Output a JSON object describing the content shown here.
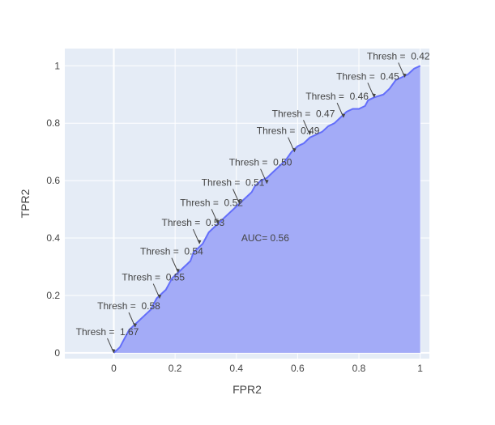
{
  "chart_data": {
    "type": "area",
    "xlabel": "FPR2",
    "ylabel": "TPR2",
    "xlim": [
      -0.16,
      1.03
    ],
    "ylim": [
      -0.02,
      1.06
    ],
    "x_ticks": [
      {
        "value": 0,
        "label": "0"
      },
      {
        "value": 0.2,
        "label": "0.2"
      },
      {
        "value": 0.4,
        "label": "0.4"
      },
      {
        "value": 0.6,
        "label": "0.6"
      },
      {
        "value": 0.8,
        "label": "0.8"
      },
      {
        "value": 1,
        "label": "1"
      }
    ],
    "y_ticks": [
      {
        "value": 0,
        "label": "0"
      },
      {
        "value": 0.2,
        "label": "0.2"
      },
      {
        "value": 0.4,
        "label": "0.4"
      },
      {
        "value": 0.6,
        "label": "0.6"
      },
      {
        "value": 0.8,
        "label": "0.8"
      },
      {
        "value": 1,
        "label": "1"
      }
    ],
    "grid": true,
    "colors": {
      "line": "#636efa",
      "fill": "#a3abf7",
      "plot_bg": "#e5ecf6",
      "grid": "#ffffff"
    },
    "roc_curve": {
      "x": [
        0.0,
        0.02,
        0.03,
        0.04,
        0.05,
        0.06,
        0.07,
        0.08,
        0.09,
        0.1,
        0.12,
        0.13,
        0.14,
        0.15,
        0.16,
        0.17,
        0.18,
        0.19,
        0.2,
        0.21,
        0.22,
        0.23,
        0.24,
        0.25,
        0.26,
        0.27,
        0.28,
        0.29,
        0.3,
        0.31,
        0.32,
        0.33,
        0.34,
        0.35,
        0.36,
        0.38,
        0.4,
        0.42,
        0.44,
        0.45,
        0.46,
        0.48,
        0.5,
        0.52,
        0.54,
        0.55,
        0.56,
        0.58,
        0.59,
        0.6,
        0.62,
        0.64,
        0.66,
        0.68,
        0.7,
        0.72,
        0.74,
        0.76,
        0.78,
        0.8,
        0.82,
        0.83,
        0.85,
        0.88,
        0.9,
        0.92,
        0.94,
        0.96,
        0.98,
        1.0
      ],
      "y": [
        0.0,
        0.02,
        0.04,
        0.06,
        0.08,
        0.09,
        0.1,
        0.11,
        0.12,
        0.13,
        0.15,
        0.17,
        0.19,
        0.2,
        0.21,
        0.22,
        0.24,
        0.26,
        0.27,
        0.28,
        0.29,
        0.3,
        0.31,
        0.32,
        0.35,
        0.36,
        0.37,
        0.38,
        0.4,
        0.42,
        0.43,
        0.44,
        0.45,
        0.46,
        0.47,
        0.49,
        0.51,
        0.53,
        0.55,
        0.56,
        0.58,
        0.6,
        0.61,
        0.63,
        0.65,
        0.66,
        0.67,
        0.7,
        0.71,
        0.72,
        0.73,
        0.75,
        0.76,
        0.77,
        0.79,
        0.8,
        0.82,
        0.84,
        0.85,
        0.85,
        0.86,
        0.88,
        0.89,
        0.9,
        0.92,
        0.95,
        0.96,
        0.97,
        0.99,
        1.0
      ]
    },
    "threshold_annotations": [
      {
        "label": "Thresh =  1.67",
        "x": 0.0,
        "y": 0.0
      },
      {
        "label": "Thresh =  0.58",
        "x": 0.07,
        "y": 0.09
      },
      {
        "label": "Thresh =  0.55",
        "x": 0.15,
        "y": 0.19
      },
      {
        "label": "Thresh =  0.54",
        "x": 0.21,
        "y": 0.28
      },
      {
        "label": "Thresh =  0.53",
        "x": 0.28,
        "y": 0.38
      },
      {
        "label": "Thresh =  0.52",
        "x": 0.34,
        "y": 0.45
      },
      {
        "label": "Thresh =  0.51",
        "x": 0.41,
        "y": 0.52
      },
      {
        "label": "Thresh =  0.50",
        "x": 0.5,
        "y": 0.59
      },
      {
        "label": "Thresh =  0.49",
        "x": 0.59,
        "y": 0.7
      },
      {
        "label": "Thresh =  0.47",
        "x": 0.64,
        "y": 0.76
      },
      {
        "label": "Thresh =  0.46",
        "x": 0.75,
        "y": 0.82
      },
      {
        "label": "Thresh =  0.45",
        "x": 0.85,
        "y": 0.89
      },
      {
        "label": "Thresh =  0.42",
        "x": 0.95,
        "y": 0.96
      }
    ],
    "auc_label": {
      "text": "AUC= 0.56",
      "x": 0.6,
      "y": 0.4
    }
  }
}
